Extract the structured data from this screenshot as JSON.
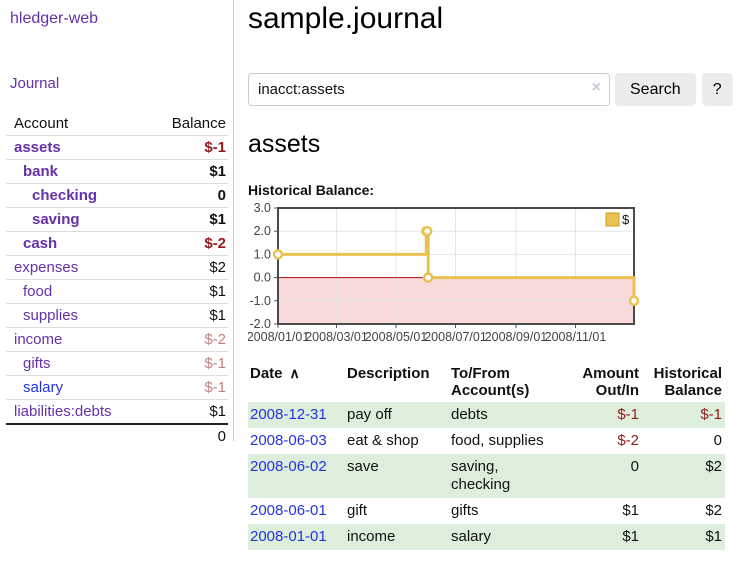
{
  "colors": {
    "purple": "#6531a8",
    "blue": "#2433dd",
    "neg_strong": "#961a1a",
    "neg_muted": "#c08080",
    "row_green": "#ddeedd",
    "button_bg": "#ececec"
  },
  "sidebar": {
    "app_title": "hledger-web",
    "journal_link": "Journal",
    "accounts_header": {
      "account": "Account",
      "balance": "Balance"
    },
    "accounts": [
      {
        "name": "assets",
        "indent": 0,
        "bold": true,
        "balance": "$-1",
        "neg": "strong"
      },
      {
        "name": "bank",
        "indent": 1,
        "bold": true,
        "balance": "$1",
        "neg": null
      },
      {
        "name": "checking",
        "indent": 2,
        "bold": true,
        "balance": "0",
        "neg": null
      },
      {
        "name": "saving",
        "indent": 2,
        "bold": true,
        "balance": "$1",
        "neg": null
      },
      {
        "name": "cash",
        "indent": 1,
        "bold": true,
        "balance": "$-2",
        "neg": "strong"
      },
      {
        "name": "expenses",
        "indent": 0,
        "bold": false,
        "balance": "$2",
        "neg": null
      },
      {
        "name": "food",
        "indent": 1,
        "bold": false,
        "balance": "$1",
        "neg": null
      },
      {
        "name": "supplies",
        "indent": 1,
        "bold": false,
        "balance": "$1",
        "neg": null
      },
      {
        "name": "income",
        "indent": 0,
        "bold": false,
        "balance": "$-2",
        "neg": "muted"
      },
      {
        "name": "gifts",
        "indent": 1,
        "bold": false,
        "balance": "$-1",
        "neg": "muted"
      },
      {
        "name": "salary",
        "indent": 1,
        "bold": false,
        "balance": "$-1",
        "neg": "muted",
        "blue": true
      },
      {
        "name": "liabilities:debts",
        "indent": 0,
        "bold": false,
        "balance": "$1",
        "neg": null
      }
    ],
    "total": "0"
  },
  "main": {
    "title": "sample.journal",
    "search": {
      "value": "inacct:assets",
      "clear_icon": "×",
      "button_label": "Search",
      "help_label": "?"
    },
    "account_heading": "assets"
  },
  "chart_data": {
    "type": "line",
    "step": true,
    "title": "Historical Balance:",
    "series": [
      {
        "name": "$",
        "color": "#e9c253",
        "points": [
          [
            "2008-01-01",
            1
          ],
          [
            "2008-06-01",
            2
          ],
          [
            "2008-06-02",
            2
          ],
          [
            "2008-06-03",
            0
          ],
          [
            "2008-12-31",
            -1
          ]
        ]
      }
    ],
    "x_range": [
      "2008-01-01",
      "2008-12-31"
    ],
    "x_ticks": [
      {
        "date": "2008-01-01",
        "label": "2008/01/01"
      },
      {
        "date": "2008-03-01",
        "label": "2008/03/01"
      },
      {
        "date": "2008-05-01",
        "label": "2008/05/01"
      },
      {
        "date": "2008-07-01",
        "label": "2008/07/01"
      },
      {
        "date": "2008-09-01",
        "label": "2008/09/01"
      },
      {
        "date": "2008-11-01",
        "label": "2008/11/01"
      }
    ],
    "y_ticks": [
      3.0,
      2.0,
      1.0,
      0.0,
      -1.0,
      -2.0
    ],
    "ylim": [
      -2,
      3
    ],
    "grid": true,
    "legend": {
      "position": "top-right",
      "label": "$"
    },
    "colors": {
      "negative_region": "#f9dbdb",
      "zero_line": "#aa1111",
      "grid": "#e5e5e5",
      "border": "#4a4a4a",
      "axis_tick": "#545454",
      "legend_swatch_border": "#c9a21c"
    }
  },
  "register": {
    "sort_indicator": "∧",
    "headers": [
      "Date",
      "Description",
      "To/From Account(s)",
      "Amount Out/In",
      "Historical Balance"
    ],
    "rows": [
      {
        "date": "2008-12-31",
        "description": "pay off",
        "accounts": "debts",
        "amount": "$-1",
        "amount_negative": true,
        "balance": "$-1",
        "balance_negative": true
      },
      {
        "date": "2008-06-03",
        "description": "eat & shop",
        "accounts": "food, supplies",
        "amount": "$-2",
        "amount_negative": true,
        "balance": "0",
        "balance_negative": false
      },
      {
        "date": "2008-06-02",
        "description": "save",
        "accounts": "saving,\nchecking",
        "amount": "0",
        "amount_negative": false,
        "balance": "$2",
        "balance_negative": false
      },
      {
        "date": "2008-06-01",
        "description": "gift",
        "accounts": "gifts",
        "amount": "$1",
        "amount_negative": false,
        "balance": "$2",
        "balance_negative": false
      },
      {
        "date": "2008-01-01",
        "description": "income",
        "accounts": "salary",
        "amount": "$1",
        "amount_negative": false,
        "balance": "$1",
        "balance_negative": false
      }
    ]
  }
}
